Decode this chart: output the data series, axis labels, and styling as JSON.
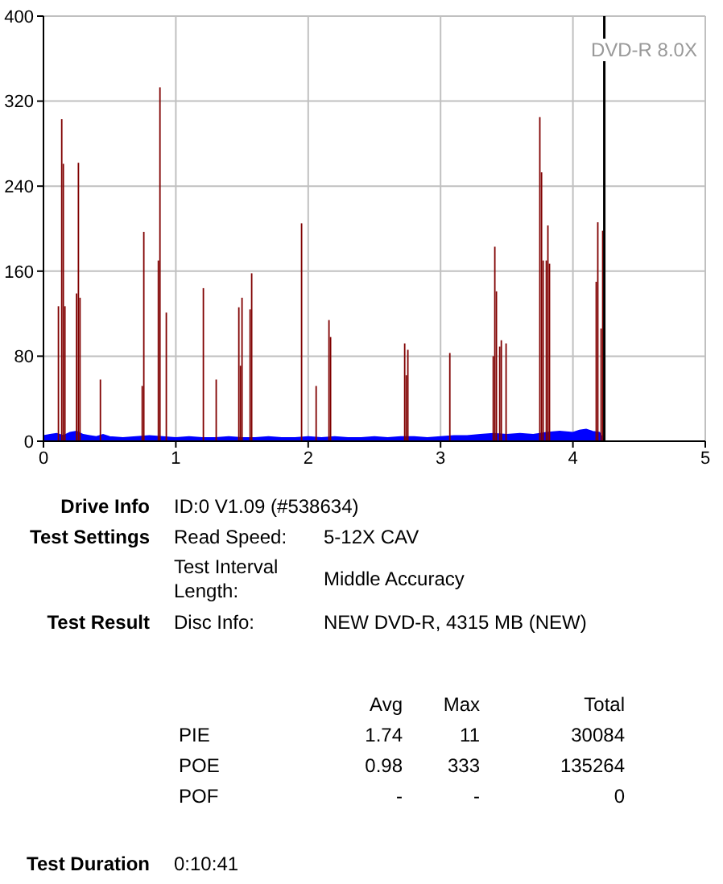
{
  "chart_data": [
    {
      "type": "bar",
      "xlim": [
        0,
        5
      ],
      "xticks": [
        0,
        1,
        2,
        3,
        4,
        5
      ],
      "ylim": [
        0,
        400
      ],
      "yticks": [
        0,
        80,
        160,
        240,
        320,
        400
      ],
      "grid": true,
      "annotations": [
        "DVD-R 8.0X"
      ],
      "ref_lines": [
        {
          "axis": "x",
          "value": 4.237,
          "color": "#000000"
        }
      ],
      "series": [
        {
          "type": "area",
          "color": "#0000ff",
          "x": [
            0,
            0.05,
            0.1,
            0.15,
            0.2,
            0.25,
            0.3,
            0.35,
            0.4,
            0.45,
            0.5,
            0.6,
            0.7,
            0.8,
            0.9,
            1.0,
            1.1,
            1.2,
            1.3,
            1.4,
            1.5,
            1.6,
            1.7,
            1.8,
            1.9,
            2.0,
            2.1,
            2.2,
            2.3,
            2.4,
            2.5,
            2.6,
            2.7,
            2.8,
            2.9,
            3.0,
            3.1,
            3.2,
            3.3,
            3.4,
            3.5,
            3.6,
            3.7,
            3.8,
            3.9,
            4.0,
            4.05,
            4.1,
            4.15,
            4.2,
            4.237
          ],
          "values": [
            5,
            6,
            7,
            5,
            8,
            9,
            6,
            5,
            4,
            6,
            4,
            3,
            4,
            5,
            4,
            3,
            4,
            3,
            3,
            4,
            3,
            3,
            4,
            3,
            3,
            4,
            3,
            4,
            3,
            3,
            4,
            3,
            4,
            4,
            3,
            4,
            5,
            5,
            6,
            7,
            6,
            7,
            6,
            8,
            9,
            8,
            10,
            11,
            9,
            8,
            0
          ]
        },
        {
          "type": "bar",
          "color": "#800000",
          "x": [
            0.113,
            0.138,
            0.15,
            0.162,
            0.25,
            0.264,
            0.276,
            0.43,
            0.746,
            0.758,
            0.868,
            0.88,
            0.928,
            1.208,
            1.305,
            1.476,
            1.488,
            1.5,
            1.561,
            1.573,
            1.95,
            2.06,
            2.157,
            2.169,
            2.729,
            2.741,
            2.753,
            3.07,
            3.398,
            3.41,
            3.422,
            3.447,
            3.459,
            3.495,
            3.75,
            3.763,
            3.775,
            3.799,
            3.811,
            3.823,
            4.176,
            4.188,
            4.213,
            4.225
          ],
          "values": [
            127,
            303,
            261,
            127,
            139,
            262,
            135,
            58,
            52,
            197,
            170,
            333,
            121,
            144,
            58,
            126,
            71,
            135,
            124,
            158,
            205,
            52,
            114,
            98,
            92,
            62,
            86,
            83,
            80,
            183,
            141,
            89,
            95,
            92,
            305,
            253,
            170,
            170,
            203,
            167,
            150,
            206,
            106,
            198
          ]
        }
      ]
    },
    {
      "type": "other",
      "annotations": [
        "Drive Info",
        "ID:0 V1.09 (#538634)",
        "Test Settings",
        "Read Speed:",
        "5-12X CAV",
        "Test Interval Length:",
        "Middle Accuracy",
        "Test Result",
        "Disc Info:",
        "NEW DVD-R, 4315 MB (NEW)",
        "Avg",
        "Max",
        "Total",
        "PIE",
        "1.74",
        "11",
        "30084",
        "POE",
        "0.98",
        "333",
        "135264",
        "POF",
        "-",
        "-",
        "0",
        "Test Duration",
        "0:10:41"
      ]
    }
  ]
}
